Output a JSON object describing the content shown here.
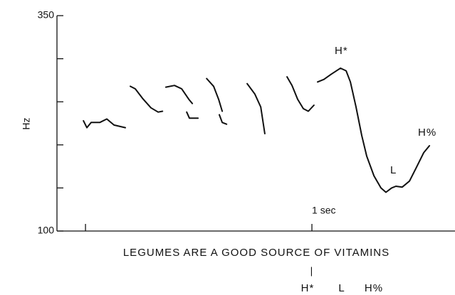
{
  "chart_data": {
    "type": "line",
    "ylabel": "Hz",
    "annotations": [
      "H*",
      "L",
      "H%",
      "LEGUMES ARE A GOOD SOURCE OF VITAMINS",
      "|",
      "H*",
      "L",
      "H%"
    ],
    "x": [
      -0.009,
      0.006,
      0.025,
      0.063,
      0.094,
      0.126,
      0.176,
      null,
      0.198,
      0.22,
      0.252,
      0.289,
      0.321,
      0.34,
      null,
      0.355,
      0.393,
      0.425,
      0.456,
      0.472,
      null,
      0.447,
      0.459,
      0.497,
      null,
      0.535,
      0.566,
      0.588,
      0.604,
      null,
      0.591,
      0.604,
      0.623,
      null,
      0.714,
      0.748,
      0.774,
      0.792,
      null,
      0.89,
      0.912,
      0.937,
      0.962,
      0.984,
      1.009,
      null,
      1.025,
      1.053,
      1.085,
      1.126,
      1.151,
      1.17,
      1.195,
      1.22,
      1.242,
      1.274,
      1.305,
      1.327,
      1.352,
      1.371,
      1.399,
      1.431,
      1.462,
      1.494,
      1.519
    ],
    "series": [
      {
        "color": "#111111",
        "values": [
          228,
          220,
          226,
          226,
          230,
          223,
          220,
          null,
          268,
          265,
          254,
          243,
          238,
          239,
          null,
          267,
          269,
          265,
          253,
          248,
          null,
          238,
          231,
          231,
          null,
          277,
          268,
          253,
          239,
          null,
          235,
          226,
          224,
          null,
          271,
          259,
          244,
          213,
          null,
          279,
          269,
          253,
          242,
          239,
          246,
          null,
          273,
          276,
          282,
          289,
          286,
          273,
          244,
          211,
          187,
          164,
          150,
          145,
          150,
          152,
          151,
          158,
          174,
          191,
          199
        ]
      }
    ],
    "xlim": [
      -0.126,
      1.632
    ],
    "xticks": [
      {
        "value": 1,
        "label": "1 sec"
      }
    ],
    "xminor_ticks": [
      0
    ],
    "ylim": [
      100,
      350
    ],
    "yticks": [
      100,
      350
    ],
    "yminor_ticks": [
      150,
      200,
      250,
      300
    ],
    "grid": false
  }
}
